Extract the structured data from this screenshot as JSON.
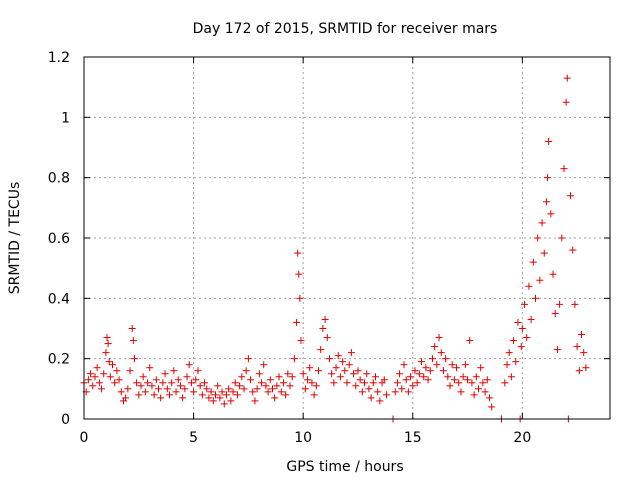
{
  "chart_data": {
    "type": "scatter",
    "title": "Day 172 of 2015, SRMTID for receiver mars",
    "xlabel": "GPS time / hours",
    "ylabel": "SRMTID / TECUs",
    "xlim": [
      0,
      24
    ],
    "ylim": [
      0,
      1.2
    ],
    "x_ticks": [
      0,
      5,
      10,
      15,
      20
    ],
    "x_tick_labels": [
      "0",
      "5",
      "10",
      "15",
      "20"
    ],
    "y_ticks": [
      0,
      0.2,
      0.4,
      0.6,
      0.8,
      1.0,
      1.2
    ],
    "y_tick_labels": [
      "0",
      "0.2",
      "0.4",
      "0.6",
      "0.8",
      "1",
      "1.2"
    ],
    "grid": true,
    "marker": "+",
    "marker_color": "#e00000",
    "series": [
      {
        "name": "SRMTID",
        "points": [
          [
            0.0,
            0.12
          ],
          [
            0.1,
            0.09
          ],
          [
            0.2,
            0.13
          ],
          [
            0.3,
            0.15
          ],
          [
            0.4,
            0.11
          ],
          [
            0.5,
            0.14
          ],
          [
            0.6,
            0.17
          ],
          [
            0.7,
            0.12
          ],
          [
            0.8,
            0.1
          ],
          [
            0.9,
            0.15
          ],
          [
            1.0,
            0.22
          ],
          [
            1.05,
            0.27
          ],
          [
            1.1,
            0.25
          ],
          [
            1.15,
            0.19
          ],
          [
            1.2,
            0.14
          ],
          [
            1.3,
            0.18
          ],
          [
            1.4,
            0.12
          ],
          [
            1.5,
            0.16
          ],
          [
            1.6,
            0.13
          ],
          [
            1.7,
            0.09
          ],
          [
            1.8,
            0.06
          ],
          [
            1.9,
            0.07
          ],
          [
            2.0,
            0.1
          ],
          [
            2.1,
            0.16
          ],
          [
            2.2,
            0.3
          ],
          [
            2.25,
            0.26
          ],
          [
            2.3,
            0.2
          ],
          [
            2.4,
            0.12
          ],
          [
            2.5,
            0.08
          ],
          [
            2.6,
            0.11
          ],
          [
            2.7,
            0.14
          ],
          [
            2.8,
            0.09
          ],
          [
            2.9,
            0.12
          ],
          [
            3.0,
            0.17
          ],
          [
            3.1,
            0.11
          ],
          [
            3.2,
            0.08
          ],
          [
            3.3,
            0.13
          ],
          [
            3.4,
            0.1
          ],
          [
            3.5,
            0.07
          ],
          [
            3.6,
            0.12
          ],
          [
            3.7,
            0.15
          ],
          [
            3.8,
            0.1
          ],
          [
            3.9,
            0.08
          ],
          [
            4.0,
            0.12
          ],
          [
            4.1,
            0.16
          ],
          [
            4.2,
            0.09
          ],
          [
            4.3,
            0.13
          ],
          [
            4.4,
            0.11
          ],
          [
            4.5,
            0.07
          ],
          [
            4.6,
            0.1
          ],
          [
            4.7,
            0.14
          ],
          [
            4.8,
            0.18
          ],
          [
            4.9,
            0.12
          ],
          [
            5.0,
            0.09
          ],
          [
            5.1,
            0.13
          ],
          [
            5.2,
            0.16
          ],
          [
            5.3,
            0.11
          ],
          [
            5.4,
            0.08
          ],
          [
            5.5,
            0.12
          ],
          [
            5.6,
            0.1
          ],
          [
            5.7,
            0.07
          ],
          [
            5.8,
            0.09
          ],
          [
            5.9,
            0.06
          ],
          [
            6.0,
            0.08
          ],
          [
            6.1,
            0.11
          ],
          [
            6.2,
            0.07
          ],
          [
            6.3,
            0.09
          ],
          [
            6.4,
            0.05
          ],
          [
            6.5,
            0.08
          ],
          [
            6.6,
            0.1
          ],
          [
            6.7,
            0.06
          ],
          [
            6.8,
            0.09
          ],
          [
            6.9,
            0.12
          ],
          [
            7.0,
            0.08
          ],
          [
            7.1,
            0.11
          ],
          [
            7.2,
            0.14
          ],
          [
            7.3,
            0.1
          ],
          [
            7.4,
            0.16
          ],
          [
            7.5,
            0.2
          ],
          [
            7.6,
            0.13
          ],
          [
            7.7,
            0.09
          ],
          [
            7.8,
            0.06
          ],
          [
            7.9,
            0.1
          ],
          [
            8.0,
            0.15
          ],
          [
            8.1,
            0.12
          ],
          [
            8.2,
            0.18
          ],
          [
            8.3,
            0.11
          ],
          [
            8.4,
            0.09
          ],
          [
            8.5,
            0.13
          ],
          [
            8.6,
            0.1
          ],
          [
            8.7,
            0.07
          ],
          [
            8.8,
            0.11
          ],
          [
            8.9,
            0.14
          ],
          [
            9.0,
            0.09
          ],
          [
            9.1,
            0.12
          ],
          [
            9.2,
            0.08
          ],
          [
            9.3,
            0.15
          ],
          [
            9.4,
            0.11
          ],
          [
            9.5,
            0.14
          ],
          [
            9.6,
            0.2
          ],
          [
            9.7,
            0.32
          ],
          [
            9.75,
            0.55
          ],
          [
            9.8,
            0.48
          ],
          [
            9.85,
            0.4
          ],
          [
            9.9,
            0.26
          ],
          [
            10.0,
            0.15
          ],
          [
            10.1,
            0.1
          ],
          [
            10.2,
            0.13
          ],
          [
            10.3,
            0.17
          ],
          [
            10.4,
            0.12
          ],
          [
            10.5,
            0.08
          ],
          [
            10.6,
            0.11
          ],
          [
            10.7,
            0.16
          ],
          [
            10.8,
            0.23
          ],
          [
            10.9,
            0.3
          ],
          [
            11.0,
            0.33
          ],
          [
            11.1,
            0.27
          ],
          [
            11.2,
            0.2
          ],
          [
            11.3,
            0.15
          ],
          [
            11.4,
            0.12
          ],
          [
            11.5,
            0.17
          ],
          [
            11.6,
            0.21
          ],
          [
            11.7,
            0.14
          ],
          [
            11.8,
            0.19
          ],
          [
            11.9,
            0.16
          ],
          [
            12.0,
            0.12
          ],
          [
            12.1,
            0.18
          ],
          [
            12.2,
            0.22
          ],
          [
            12.3,
            0.15
          ],
          [
            12.4,
            0.11
          ],
          [
            12.5,
            0.16
          ],
          [
            12.6,
            0.13
          ],
          [
            12.7,
            0.09
          ],
          [
            12.8,
            0.12
          ],
          [
            12.9,
            0.15
          ],
          [
            13.0,
            0.1
          ],
          [
            13.1,
            0.07
          ],
          [
            13.2,
            0.12
          ],
          [
            13.3,
            0.14
          ],
          [
            13.4,
            0.09
          ],
          [
            13.5,
            0.06
          ],
          [
            13.6,
            0.12
          ],
          [
            13.7,
            0.13
          ],
          [
            13.8,
            0.08
          ],
          [
            14.1,
            0.0
          ],
          [
            14.2,
            0.09
          ],
          [
            14.3,
            0.12
          ],
          [
            14.4,
            0.15
          ],
          [
            14.5,
            0.1
          ],
          [
            14.6,
            0.18
          ],
          [
            14.7,
            0.13
          ],
          [
            14.8,
            0.09
          ],
          [
            14.9,
            0.14
          ],
          [
            15.0,
            0.11
          ],
          [
            15.1,
            0.16
          ],
          [
            15.2,
            0.12
          ],
          [
            15.3,
            0.15
          ],
          [
            15.4,
            0.19
          ],
          [
            15.5,
            0.14
          ],
          [
            15.6,
            0.17
          ],
          [
            15.7,
            0.13
          ],
          [
            15.8,
            0.16
          ],
          [
            15.9,
            0.2
          ],
          [
            16.0,
            0.24
          ],
          [
            16.1,
            0.18
          ],
          [
            16.2,
            0.27
          ],
          [
            16.3,
            0.22
          ],
          [
            16.4,
            0.16
          ],
          [
            16.5,
            0.2
          ],
          [
            16.6,
            0.14
          ],
          [
            16.7,
            0.11
          ],
          [
            16.8,
            0.18
          ],
          [
            16.9,
            0.13
          ],
          [
            17.0,
            0.17
          ],
          [
            17.1,
            0.12
          ],
          [
            17.2,
            0.09
          ],
          [
            17.3,
            0.14
          ],
          [
            17.4,
            0.18
          ],
          [
            17.5,
            0.13
          ],
          [
            17.6,
            0.26
          ],
          [
            17.7,
            0.12
          ],
          [
            17.8,
            0.08
          ],
          [
            17.9,
            0.14
          ],
          [
            18.0,
            0.1
          ],
          [
            18.1,
            0.17
          ],
          [
            18.2,
            0.12
          ],
          [
            18.3,
            0.09
          ],
          [
            18.4,
            0.13
          ],
          [
            18.5,
            0.07
          ],
          [
            18.6,
            0.04
          ],
          [
            19.05,
            0.0
          ],
          [
            19.2,
            0.12
          ],
          [
            19.3,
            0.18
          ],
          [
            19.4,
            0.22
          ],
          [
            19.5,
            0.14
          ],
          [
            19.6,
            0.26
          ],
          [
            19.7,
            0.19
          ],
          [
            19.8,
            0.32
          ],
          [
            19.9,
            0.0
          ],
          [
            19.95,
            0.24
          ],
          [
            20.0,
            0.3
          ],
          [
            20.1,
            0.38
          ],
          [
            20.2,
            0.27
          ],
          [
            20.3,
            0.44
          ],
          [
            20.4,
            0.33
          ],
          [
            20.5,
            0.52
          ],
          [
            20.6,
            0.4
          ],
          [
            20.7,
            0.6
          ],
          [
            20.8,
            0.46
          ],
          [
            20.9,
            0.65
          ],
          [
            21.0,
            0.55
          ],
          [
            21.1,
            0.72
          ],
          [
            21.15,
            0.8
          ],
          [
            21.2,
            0.92
          ],
          [
            21.3,
            0.68
          ],
          [
            21.4,
            0.48
          ],
          [
            21.5,
            0.35
          ],
          [
            21.6,
            0.23
          ],
          [
            21.7,
            0.38
          ],
          [
            21.8,
            0.6
          ],
          [
            21.9,
            0.83
          ],
          [
            22.0,
            1.05
          ],
          [
            22.05,
            1.13
          ],
          [
            22.1,
            0.0
          ],
          [
            22.2,
            0.74
          ],
          [
            22.3,
            0.56
          ],
          [
            22.4,
            0.38
          ],
          [
            22.5,
            0.24
          ],
          [
            22.6,
            0.16
          ],
          [
            22.7,
            0.28
          ],
          [
            22.8,
            0.22
          ],
          [
            22.9,
            0.17
          ]
        ]
      }
    ]
  }
}
